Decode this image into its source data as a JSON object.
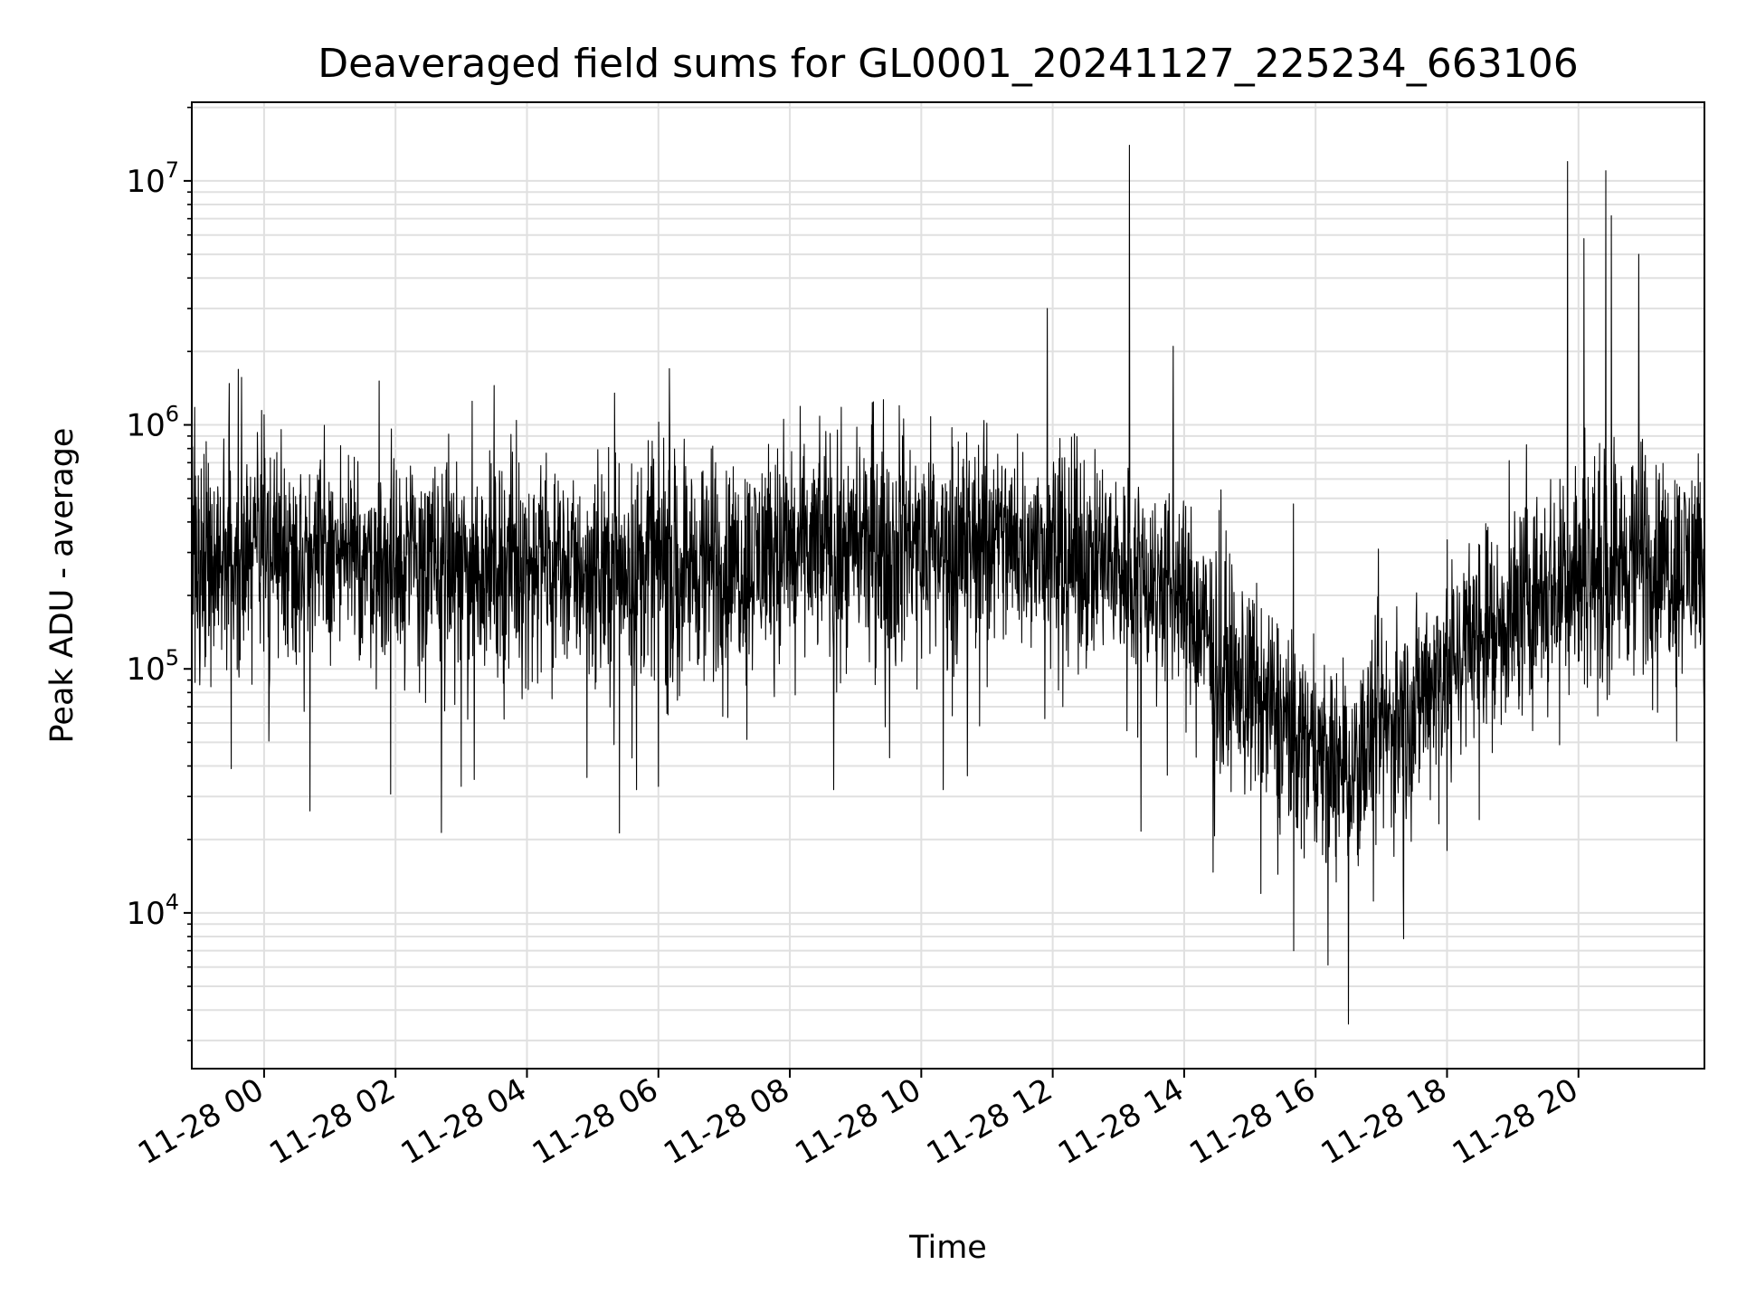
{
  "chart_data": {
    "type": "line",
    "title": "Deaveraged field sums for GL0001_20241127_225234_663106",
    "xlabel": "Time",
    "ylabel": "Peak ADU - average",
    "yscale": "log",
    "ylim": [
      2300,
      21000000
    ],
    "xlim": [
      "2024-11-27 22:54",
      "2024-11-28 21:55"
    ],
    "x_ticks": [
      {
        "time": "2024-11-28 00:00",
        "label": "11-28 00"
      },
      {
        "time": "2024-11-28 02:00",
        "label": "11-28 02"
      },
      {
        "time": "2024-11-28 04:00",
        "label": "11-28 04"
      },
      {
        "time": "2024-11-28 06:00",
        "label": "11-28 06"
      },
      {
        "time": "2024-11-28 08:00",
        "label": "11-28 08"
      },
      {
        "time": "2024-11-28 10:00",
        "label": "11-28 10"
      },
      {
        "time": "2024-11-28 12:00",
        "label": "11-28 12"
      },
      {
        "time": "2024-11-28 14:00",
        "label": "11-28 14"
      },
      {
        "time": "2024-11-28 16:00",
        "label": "11-28 16"
      },
      {
        "time": "2024-11-28 18:00",
        "label": "11-28 18"
      },
      {
        "time": "2024-11-28 20:00",
        "label": "11-28 20"
      }
    ],
    "y_ticks": [
      {
        "value": 10000,
        "base": "10",
        "exp": "4"
      },
      {
        "value": 100000,
        "base": "10",
        "exp": "5"
      },
      {
        "value": 1000000,
        "base": "10",
        "exp": "6"
      },
      {
        "value": 10000000,
        "base": "10",
        "exp": "7"
      }
    ],
    "grid": true,
    "line_color": "#000000",
    "grid_color": "#e0e0e0",
    "series": [
      {
        "values": [
          [
            "2024-11-27 22:54",
            300000
          ],
          [
            "2024-11-27 23:30",
            290000
          ],
          [
            "2024-11-28 00:00",
            310000
          ],
          [
            "2024-11-28 01:00",
            280000
          ],
          [
            "2024-11-28 02:00",
            280000
          ],
          [
            "2024-11-28 03:00",
            260000
          ],
          [
            "2024-11-28 04:00",
            280000
          ],
          [
            "2024-11-28 05:00",
            250000
          ],
          [
            "2024-11-28 06:00",
            270000
          ],
          [
            "2024-11-28 07:00",
            260000
          ],
          [
            "2024-11-28 08:00",
            300000
          ],
          [
            "2024-11-28 09:00",
            320000
          ],
          [
            "2024-11-28 10:00",
            320000
          ],
          [
            "2024-11-28 11:00",
            330000
          ],
          [
            "2024-11-28 12:00",
            300000
          ],
          [
            "2024-11-28 13:00",
            270000
          ],
          [
            "2024-11-28 14:00",
            200000
          ],
          [
            "2024-11-28 14:30",
            110000
          ],
          [
            "2024-11-28 15:00",
            80000
          ],
          [
            "2024-11-28 15:30",
            60000
          ],
          [
            "2024-11-28 16:00",
            45000
          ],
          [
            "2024-11-28 16:30",
            40000
          ],
          [
            "2024-11-28 17:00",
            55000
          ],
          [
            "2024-11-28 17:30",
            70000
          ],
          [
            "2024-11-28 18:00",
            110000
          ],
          [
            "2024-11-28 19:00",
            170000
          ],
          [
            "2024-11-28 20:00",
            260000
          ],
          [
            "2024-11-28 21:00",
            280000
          ],
          [
            "2024-11-28 21:55",
            260000
          ]
        ],
        "spikes": [
          [
            "2024-11-27 23:30",
            850000
          ],
          [
            "2024-11-28 00:00",
            1100000
          ],
          [
            "2024-11-28 03:10",
            1250000
          ],
          [
            "2024-11-28 03:30",
            1450000
          ],
          [
            "2024-11-28 05:20",
            1350000
          ],
          [
            "2024-11-28 06:10",
            1700000
          ],
          [
            "2024-11-28 11:55",
            3000000
          ],
          [
            "2024-11-28 13:10",
            14000000
          ],
          [
            "2024-11-28 13:50",
            2100000
          ],
          [
            "2024-11-28 19:50",
            12000000
          ],
          [
            "2024-11-28 20:05",
            5800000
          ],
          [
            "2024-11-28 20:25",
            11000000
          ],
          [
            "2024-11-28 20:30",
            7200000
          ],
          [
            "2024-11-28 20:55",
            5000000
          ]
        ],
        "dips": [
          [
            "2024-11-27 23:30",
            39000
          ],
          [
            "2024-11-28 03:00",
            33000
          ],
          [
            "2024-11-28 05:40",
            32000
          ],
          [
            "2024-11-28 06:00",
            33000
          ],
          [
            "2024-11-28 08:40",
            32000
          ],
          [
            "2024-11-28 10:20",
            32000
          ],
          [
            "2024-11-28 15:10",
            12000
          ],
          [
            "2024-11-28 15:40",
            7000
          ],
          [
            "2024-11-28 16:30",
            3500
          ],
          [
            "2024-11-28 17:20",
            13000
          ],
          [
            "2024-11-28 18:00",
            18000
          ]
        ]
      }
    ]
  }
}
